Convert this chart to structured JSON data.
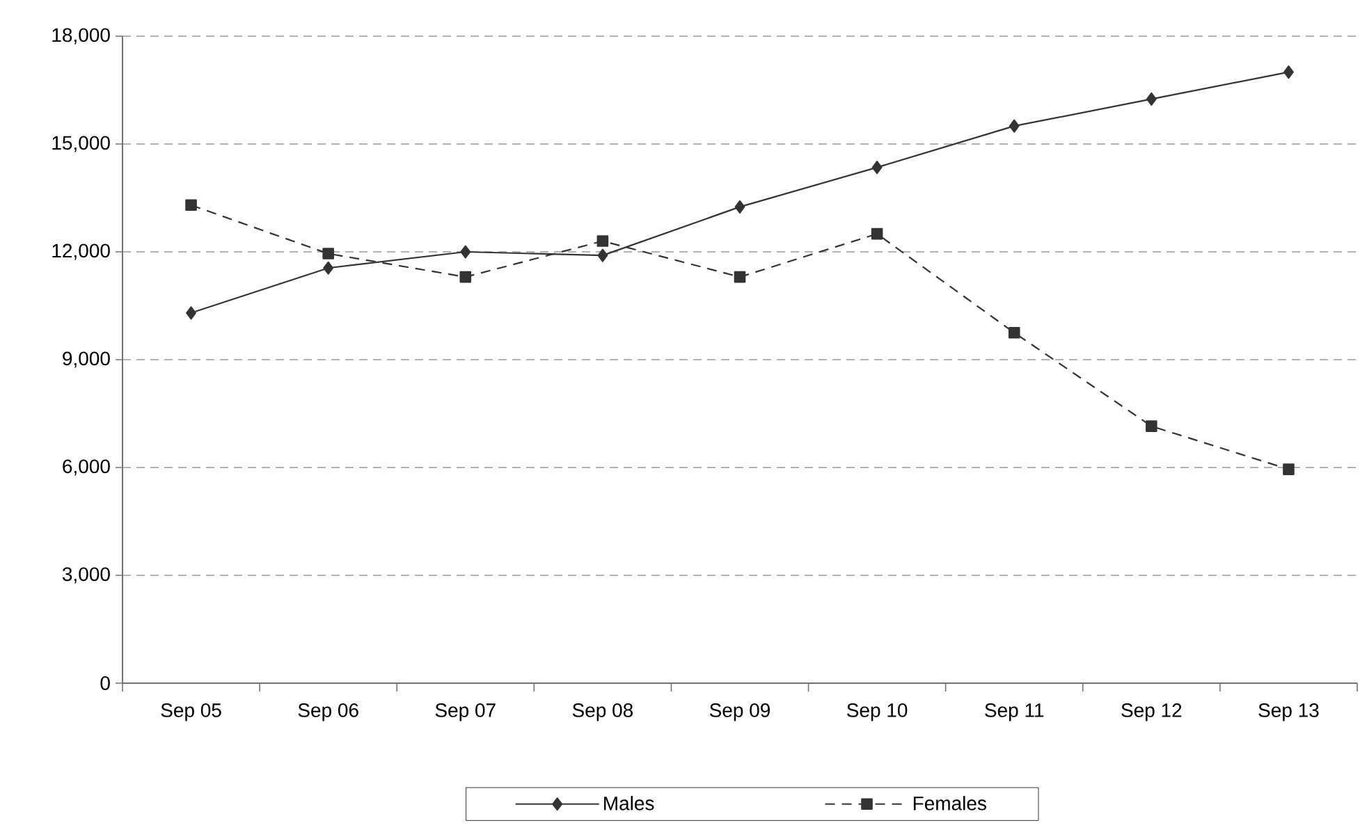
{
  "chart_data": {
    "type": "line",
    "categories": [
      "Sep 05",
      "Sep 06",
      "Sep 07",
      "Sep 08",
      "Sep 09",
      "Sep 10",
      "Sep 11",
      "Sep 12",
      "Sep 13"
    ],
    "series": [
      {
        "name": "Males",
        "color": "#333333",
        "marker": "diamond",
        "line_style": "solid",
        "values": [
          10300,
          11550,
          12000,
          11900,
          13250,
          14350,
          15500,
          16250,
          17000
        ]
      },
      {
        "name": "Females",
        "color": "#333333",
        "marker": "square",
        "line_style": "dashed",
        "values": [
          13300,
          11950,
          11300,
          12300,
          11300,
          12500,
          9750,
          7150,
          5950
        ]
      }
    ],
    "ylim": [
      0,
      18000
    ],
    "yticks": [
      0,
      {
        "value": 3000,
        "label": "3,000"
      },
      {
        "value": 6000,
        "label": "6,000"
      },
      {
        "value": 9000,
        "label": "9,000"
      },
      {
        "value": 12000,
        "label": "12,000"
      },
      {
        "value": 15000,
        "label": "15,000"
      },
      {
        "value": 18000,
        "label": "18,000"
      }
    ],
    "grid": "y",
    "legend": "bottom"
  }
}
